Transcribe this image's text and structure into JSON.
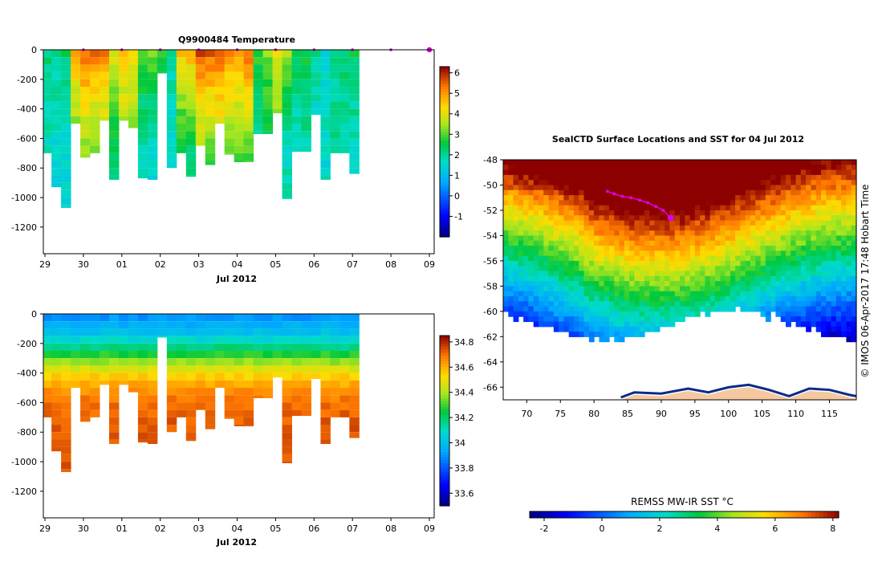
{
  "chart_data": [
    {
      "type": "heatmap",
      "title": "Q9900484  Temperature",
      "xlabel": "Jul 2012",
      "ylabel": "",
      "x_tick_labels": [
        "29",
        "30",
        "01",
        "02",
        "03",
        "04",
        "05",
        "06",
        "07",
        "08",
        "09"
      ],
      "x_tick_values": [
        0,
        1,
        2,
        3,
        4,
        5,
        6,
        7,
        8,
        9,
        10
      ],
      "ylim": [
        -1380,
        0
      ],
      "y_ticks": [
        0,
        -200,
        -400,
        -600,
        -800,
        -1000,
        -1200
      ],
      "colorbar": {
        "min": -2,
        "max": 6.3,
        "ticks": [
          6,
          5,
          4,
          3,
          2,
          1,
          0,
          -1
        ]
      },
      "profiles": [
        {
          "day": 0.1,
          "bottom": -700,
          "surface": 2.2,
          "deep": 1.6
        },
        {
          "day": 0.3,
          "bottom": -930,
          "surface": 2.0,
          "deep": 1.5
        },
        {
          "day": 0.55,
          "bottom": -1070,
          "surface": 2.4,
          "deep": 1.6
        },
        {
          "day": 0.8,
          "bottom": -500,
          "surface": 4.8,
          "deep": 2.9
        },
        {
          "day": 1.05,
          "bottom": -730,
          "surface": 5.5,
          "deep": 3.2
        },
        {
          "day": 1.3,
          "bottom": -700,
          "surface": 5.3,
          "deep": 3.0
        },
        {
          "day": 1.55,
          "bottom": -480,
          "surface": 5.2,
          "deep": 3.1
        },
        {
          "day": 1.8,
          "bottom": -880,
          "surface": 4.0,
          "deep": 2.2
        },
        {
          "day": 2.05,
          "bottom": -480,
          "surface": 4.6,
          "deep": 3.0
        },
        {
          "day": 2.3,
          "bottom": -530,
          "surface": 4.4,
          "deep": 3.0
        },
        {
          "day": 2.55,
          "bottom": -870,
          "surface": 3.0,
          "deep": 1.7
        },
        {
          "day": 2.8,
          "bottom": -880,
          "surface": 3.2,
          "deep": 1.5
        },
        {
          "day": 3.05,
          "bottom": -160,
          "surface": 2.6,
          "deep": 2.3
        },
        {
          "day": 3.3,
          "bottom": -800,
          "surface": 2.0,
          "deep": 1.5
        },
        {
          "day": 3.55,
          "bottom": -700,
          "surface": 4.6,
          "deep": 2.2
        },
        {
          "day": 3.8,
          "bottom": -860,
          "surface": 4.8,
          "deep": 2.1
        },
        {
          "day": 4.05,
          "bottom": -650,
          "surface": 5.6,
          "deep": 3.2
        },
        {
          "day": 4.3,
          "bottom": -780,
          "surface": 5.6,
          "deep": 3.0
        },
        {
          "day": 4.55,
          "bottom": -500,
          "surface": 5.4,
          "deep": 3.4
        },
        {
          "day": 4.8,
          "bottom": -710,
          "surface": 5.0,
          "deep": 3.0
        },
        {
          "day": 5.05,
          "bottom": -760,
          "surface": 5.2,
          "deep": 2.8
        },
        {
          "day": 5.3,
          "bottom": -760,
          "surface": 5.5,
          "deep": 2.9
        },
        {
          "day": 5.55,
          "bottom": -570,
          "surface": 2.8,
          "deep": 1.8
        },
        {
          "day": 5.8,
          "bottom": -570,
          "surface": 3.2,
          "deep": 2.3
        },
        {
          "day": 6.05,
          "bottom": -430,
          "surface": 4.0,
          "deep": 3.0
        },
        {
          "day": 6.3,
          "bottom": -1010,
          "surface": 3.6,
          "deep": 1.7
        },
        {
          "day": 6.55,
          "bottom": -690,
          "surface": 2.4,
          "deep": 1.6
        },
        {
          "day": 6.8,
          "bottom": -690,
          "surface": 2.6,
          "deep": 1.8
        },
        {
          "day": 7.05,
          "bottom": -440,
          "surface": 2.2,
          "deep": 1.3
        },
        {
          "day": 7.3,
          "bottom": -880,
          "surface": 1.6,
          "deep": 1.6
        },
        {
          "day": 7.55,
          "bottom": -700,
          "surface": 2.0,
          "deep": 1.9
        },
        {
          "day": 7.8,
          "bottom": -700,
          "surface": 2.2,
          "deep": 1.9
        },
        {
          "day": 8.05,
          "bottom": -840,
          "surface": 2.4,
          "deep": 1.7
        }
      ]
    },
    {
      "type": "heatmap",
      "title": "",
      "xlabel": "Jul 2012",
      "ylabel": "",
      "x_tick_labels": [
        "29",
        "30",
        "01",
        "02",
        "03",
        "04",
        "05",
        "06",
        "07",
        "08",
        "09"
      ],
      "x_tick_values": [
        0,
        1,
        2,
        3,
        4,
        5,
        6,
        7,
        8,
        9,
        10
      ],
      "ylim": [
        -1380,
        0
      ],
      "y_ticks": [
        0,
        -200,
        -400,
        -600,
        -800,
        -1000,
        -1200
      ],
      "colorbar": {
        "min": 33.5,
        "max": 34.85,
        "ticks": [
          34.8,
          34.6,
          34.4,
          34.2,
          34,
          33.8,
          33.6
        ],
        "tick_labels": [
          "34.8",
          "34.6",
          "34.4",
          "34.2",
          "34",
          "33.8",
          "33.6"
        ]
      }
    },
    {
      "type": "heatmap",
      "title": "SealCTD Surface Locations and SST for 04 Jul 2012",
      "xlabel": "",
      "ylabel": "",
      "x_ticks": [
        70,
        75,
        80,
        85,
        90,
        95,
        100,
        105,
        110,
        115
      ],
      "xlim": [
        66.5,
        119
      ],
      "y_ticks": [
        -48,
        -50,
        -52,
        -54,
        -56,
        -58,
        -60,
        -62,
        -64,
        -66
      ],
      "ylim": [
        -67,
        -48
      ],
      "side_label": "© IMOS 06-Apr-2017 17:48 Hobart Time",
      "colorbar": {
        "title": "REMSS MW-IR SST °C",
        "min": -2.5,
        "max": 8.2,
        "ticks": [
          -2,
          0,
          2,
          4,
          6,
          8
        ]
      },
      "track": [
        {
          "lon": 82.0,
          "lat": -50.5
        },
        {
          "lon": 83.0,
          "lat": -50.7
        },
        {
          "lon": 84.2,
          "lat": -50.9
        },
        {
          "lon": 85.5,
          "lat": -51.0
        },
        {
          "lon": 86.8,
          "lat": -51.2
        },
        {
          "lon": 88.0,
          "lat": -51.4
        },
        {
          "lon": 89.2,
          "lat": -51.7
        },
        {
          "lon": 90.3,
          "lat": -52.0
        },
        {
          "lon": 91.4,
          "lat": -52.6
        }
      ],
      "current_position": {
        "lon": 91.4,
        "lat": -52.6
      }
    }
  ]
}
